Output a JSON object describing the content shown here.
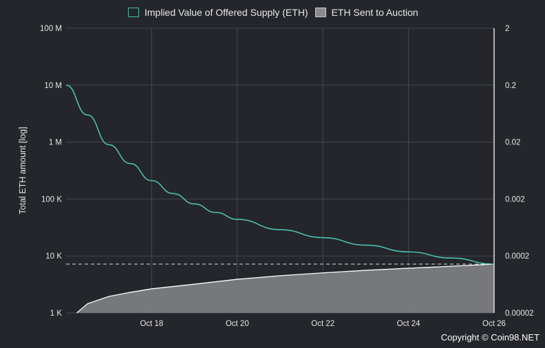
{
  "legend": {
    "series1": "Implied Value of Offered Supply (ETH)",
    "series2": "ETH Sent to Auction"
  },
  "copyright": "Copyright © Coin98.NET",
  "colors": {
    "background": "#24262b",
    "grid": "#5a5d63",
    "implied_line": "#4fbfb2",
    "auction_fill": "#7b7c80",
    "auction_line": "#ffffff"
  },
  "chart_data": {
    "type": "area",
    "xlabel": "",
    "ylabel": "Total ETH amount [log]",
    "y_scale": "log",
    "ylim": [
      1000,
      100000000
    ],
    "y_ticks": [
      {
        "value": 1000,
        "label": "1 K"
      },
      {
        "value": 10000,
        "label": "10 K"
      },
      {
        "value": 100000,
        "label": "100 K"
      },
      {
        "value": 1000000,
        "label": "1 M"
      },
      {
        "value": 10000000,
        "label": "10 M"
      },
      {
        "value": 100000000,
        "label": "100 M"
      }
    ],
    "y2_scale": "log",
    "y2lim": [
      2e-05,
      2
    ],
    "y2_ticks": [
      {
        "value": 2e-05,
        "label": "0.00002"
      },
      {
        "value": 0.0002,
        "label": "0.0002"
      },
      {
        "value": 0.002,
        "label": "0.002"
      },
      {
        "value": 0.02,
        "label": "0.02"
      },
      {
        "value": 0.2,
        "label": "0.2"
      },
      {
        "value": 2,
        "label": "2"
      }
    ],
    "xlim": [
      "2020-10-16",
      "2020-10-26"
    ],
    "x_ticks": [
      {
        "value": "2020-10-18",
        "label": "Oct 18"
      },
      {
        "value": "2020-10-20",
        "label": "Oct 20"
      },
      {
        "value": "2020-10-22",
        "label": "Oct 22"
      },
      {
        "value": "2020-10-24",
        "label": "Oct 24"
      },
      {
        "value": "2020-10-26",
        "label": "Oct 26"
      }
    ],
    "grid": true,
    "legend_position": "top",
    "reference_line": {
      "y": 7200,
      "style": "dashed"
    },
    "end_marker": {
      "x": "2020-10-26"
    },
    "series": [
      {
        "name": "Implied Value of Offered Supply (ETH)",
        "kind": "line",
        "x": [
          "2020-10-16",
          "2020-10-16T12:00",
          "2020-10-17",
          "2020-10-17T12:00",
          "2020-10-18",
          "2020-10-18T12:00",
          "2020-10-19",
          "2020-10-19T12:00",
          "2020-10-20",
          "2020-10-21",
          "2020-10-22",
          "2020-10-23",
          "2020-10-24",
          "2020-10-25",
          "2020-10-26"
        ],
        "values": [
          10000000,
          3000000,
          900000,
          420000,
          210000,
          125000,
          82000,
          58000,
          44000,
          29000,
          21000,
          15500,
          11800,
          9200,
          7200
        ]
      },
      {
        "name": "ETH Sent to Auction",
        "kind": "area",
        "x": [
          "2020-10-16T06:00",
          "2020-10-16T12:00",
          "2020-10-17",
          "2020-10-17T12:00",
          "2020-10-18",
          "2020-10-19",
          "2020-10-20",
          "2020-10-21",
          "2020-10-22",
          "2020-10-23",
          "2020-10-24",
          "2020-10-25",
          "2020-10-26"
        ],
        "values": [
          1000,
          1450,
          1950,
          2300,
          2650,
          3200,
          3900,
          4500,
          5050,
          5600,
          6100,
          6600,
          7200
        ]
      }
    ]
  }
}
